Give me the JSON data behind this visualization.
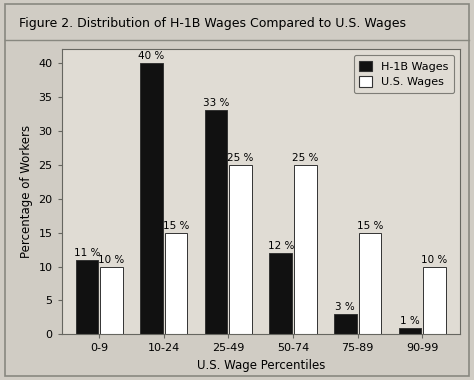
{
  "title": "Figure 2. Distribution of H-1B Wages Compared to U.S. Wages",
  "categories": [
    "0-9",
    "10-24",
    "25-49",
    "50-74",
    "75-89",
    "90-99"
  ],
  "h1b_values": [
    11,
    40,
    33,
    12,
    3,
    1
  ],
  "us_values": [
    10,
    15,
    25,
    25,
    15,
    10
  ],
  "h1b_labels": [
    "11 %",
    "40 %",
    "33 %",
    "12 %",
    "3 %",
    "1 %"
  ],
  "us_labels": [
    "10 %",
    "15 %",
    "25 %",
    "25 %",
    "15 %",
    "10 %"
  ],
  "h1b_color": "#111111",
  "us_color": "#ffffff",
  "bar_edge_color": "#333333",
  "xlabel": "U.S. Wage Percentiles",
  "ylabel": "Percentage of Workers",
  "ylim": [
    0,
    42
  ],
  "yticks": [
    0,
    5,
    10,
    15,
    20,
    25,
    30,
    35,
    40
  ],
  "legend_labels": [
    "H-1B Wages",
    "U.S. Wages"
  ],
  "outer_bg_color": "#d0ccc4",
  "plot_bg_color": "#e0dcd4",
  "border_color": "#888880",
  "title_fontsize": 9.0,
  "axis_fontsize": 8.5,
  "tick_fontsize": 8.0,
  "label_fontsize": 7.5
}
